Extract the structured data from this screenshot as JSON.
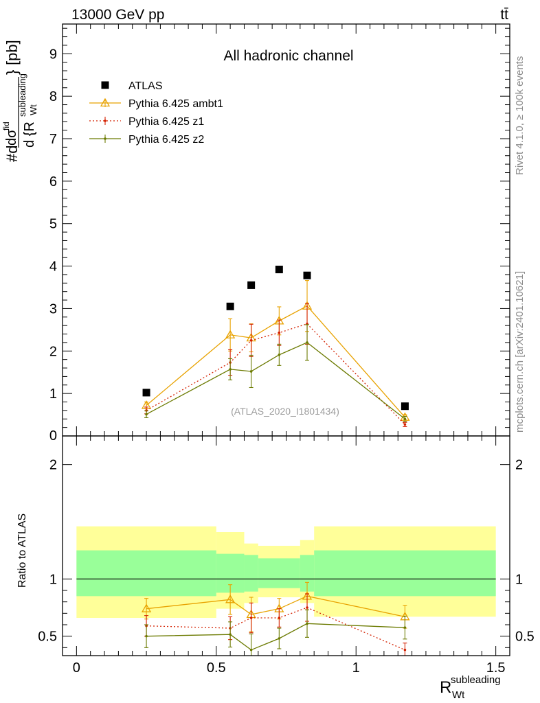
{
  "header": {
    "left": "13000 GeV pp",
    "right": "tt̄",
    "side_top": "Rivet 4.1.0, ≥ 100k events",
    "side_bottom": "mcplots.cern.ch [arXiv:2401.10621]"
  },
  "colors": {
    "atlas": "#000000",
    "ambt1": "#e8a200",
    "z1": "#d42000",
    "z2": "#6b7a00",
    "band_inner": "#99ff99",
    "band_outer": "#ffff99"
  },
  "chart_data": [
    {
      "type": "scatter",
      "panel": "main",
      "title": "All hadronic channel",
      "watermark": "(ATLAS_2020_I1801434)",
      "ylabel_parts": {
        "numerator": "dσ",
        "numerator_sup": "fid",
        "prefix": "#d",
        "denominator": "d {R",
        "denominator_sup": "subleading",
        "denominator_sub": "Wt",
        "denominator_close": "}",
        "unit": "[pb]"
      },
      "xlim": [
        -0.05,
        1.55
      ],
      "ylim": [
        0,
        9.7
      ],
      "yticks": [
        1,
        2,
        3,
        4,
        5,
        6,
        7,
        8,
        9
      ],
      "ytick_labels": [
        "1",
        "2",
        "3",
        "4",
        "5",
        "6",
        "7",
        "8",
        "9"
      ],
      "partial_tick_label": "0",
      "legend_position": "top-left",
      "series": [
        {
          "name": "ATLAS",
          "key": "atlas",
          "marker": "square",
          "line": "none",
          "x": [
            0.25,
            0.55,
            0.625,
            0.725,
            0.825,
            1.175
          ],
          "y": [
            1.02,
            3.05,
            3.55,
            3.92,
            3.78,
            0.7
          ]
        },
        {
          "name": "Pythia 6.425 ambt1",
          "key": "ambt1",
          "marker": "triangle",
          "line": "solid",
          "x": [
            0.25,
            0.55,
            0.625,
            0.725,
            0.825,
            1.175
          ],
          "y": [
            0.72,
            2.38,
            2.31,
            2.71,
            3.06,
            0.44
          ],
          "err": [
            0.08,
            0.38,
            0.33,
            0.33,
            0.6,
            0.06
          ]
        },
        {
          "name": "Pythia 6.425 z1",
          "key": "z1",
          "marker": "dot",
          "line": "dotted",
          "x": [
            0.25,
            0.55,
            0.625,
            0.725,
            0.825,
            1.175
          ],
          "y": [
            0.6,
            1.73,
            2.25,
            2.43,
            2.64,
            0.27
          ],
          "err": [
            0.08,
            0.3,
            0.38,
            0.3,
            0.48,
            0.05
          ]
        },
        {
          "name": "Pythia 6.425 z2",
          "key": "z2",
          "marker": "dot",
          "line": "solid",
          "x": [
            0.25,
            0.55,
            0.625,
            0.725,
            0.825,
            1.175
          ],
          "y": [
            0.51,
            1.57,
            1.52,
            1.91,
            2.2,
            0.4
          ],
          "err": [
            0.08,
            0.25,
            0.38,
            0.25,
            0.42,
            0.06
          ]
        }
      ]
    },
    {
      "type": "scatter",
      "panel": "ratio",
      "ylabel": "Ratio to ATLAS",
      "xlabel_base": "R",
      "xlabel_sup": "subleading",
      "xlabel_sub": "Wt",
      "xlim": [
        -0.05,
        1.55
      ],
      "ylim": [
        0.33,
        2.25
      ],
      "xticks": [
        0,
        0.5,
        1,
        1.5
      ],
      "xtick_labels": [
        "0",
        "0.5",
        "1",
        "1.5"
      ],
      "yticks": [
        0.5,
        1,
        2
      ],
      "ytick_labels": [
        "0.5",
        "1",
        "2"
      ],
      "bands": [
        {
          "x0": 0.0,
          "x1": 0.5,
          "inner": [
            0.85,
            1.25
          ],
          "outer": [
            0.66,
            1.46
          ]
        },
        {
          "x0": 0.5,
          "x1": 0.6,
          "inner": [
            0.88,
            1.22
          ],
          "outer": [
            0.74,
            1.41
          ]
        },
        {
          "x0": 0.6,
          "x1": 0.65,
          "inner": [
            0.89,
            1.21
          ],
          "outer": [
            0.79,
            1.31
          ]
        },
        {
          "x0": 0.65,
          "x1": 0.8,
          "inner": [
            0.92,
            1.18
          ],
          "outer": [
            0.84,
            1.29
          ]
        },
        {
          "x0": 0.8,
          "x1": 0.85,
          "inner": [
            0.89,
            1.21
          ],
          "outer": [
            0.79,
            1.34
          ]
        },
        {
          "x0": 0.85,
          "x1": 1.5,
          "inner": [
            0.85,
            1.25
          ],
          "outer": [
            0.67,
            1.46
          ]
        }
      ],
      "series": [
        {
          "key": "ambt1",
          "marker": "triangle",
          "line": "solid",
          "x": [
            0.25,
            0.55,
            0.625,
            0.725,
            0.825,
            1.175
          ],
          "y": [
            0.74,
            0.82,
            0.69,
            0.74,
            0.85,
            0.67
          ],
          "err": [
            0.09,
            0.13,
            0.15,
            0.09,
            0.12,
            0.1
          ]
        },
        {
          "key": "z1",
          "marker": "dot",
          "line": "dotted",
          "x": [
            0.25,
            0.55,
            0.625,
            0.725,
            0.825,
            1.175
          ],
          "y": [
            0.59,
            0.57,
            0.66,
            0.66,
            0.75,
            0.38
          ],
          "err": [
            0.09,
            0.1,
            0.13,
            0.08,
            0.12,
            0.06
          ]
        },
        {
          "key": "z2",
          "marker": "dot",
          "line": "solid",
          "x": [
            0.25,
            0.55,
            0.625,
            0.725,
            0.825,
            1.175
          ],
          "y": [
            0.5,
            0.515,
            0.38,
            0.48,
            0.61,
            0.575
          ],
          "err": [
            0.1,
            0.11,
            0.14,
            0.09,
            0.12,
            0.1
          ]
        }
      ]
    }
  ]
}
